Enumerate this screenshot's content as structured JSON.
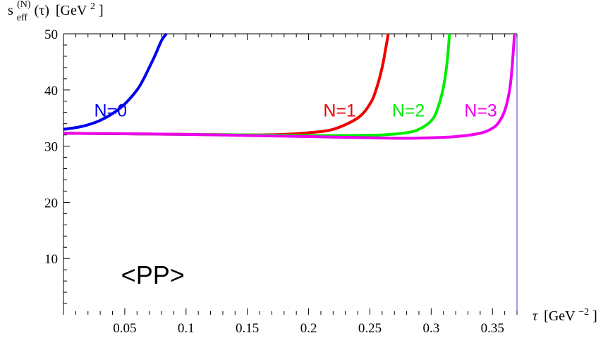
{
  "chart_data": {
    "type": "line",
    "title": "",
    "xlabel": {
      "symbol": "τ",
      "unit_prefix": "[GeV",
      "unit_exp": "−2",
      "unit_suffix": "]"
    },
    "ylabel": {
      "main": "s",
      "sub": "eff",
      "sup": "(N)",
      "arg": "(τ)",
      "unit_prefix": "[GeV",
      "unit_exp": "2",
      "unit_suffix": "]"
    },
    "xlim": [
      0.0,
      0.37
    ],
    "ylim": [
      0,
      50
    ],
    "xticks": [
      0.05,
      0.1,
      0.15,
      0.2,
      0.25,
      0.3,
      0.35
    ],
    "xtick_labels": [
      "0.05",
      "0.1",
      "0.15",
      "0.2",
      "0.25",
      "0.3",
      "0.35"
    ],
    "yticks": [
      10,
      20,
      30,
      40,
      50
    ],
    "ytick_labels": [
      "10",
      "20",
      "30",
      "40",
      "50"
    ],
    "grid": false,
    "annotation": "<PP>",
    "series": [
      {
        "name": "N=0",
        "color": "#0000ee",
        "x": [
          0.0,
          0.01,
          0.02,
          0.03,
          0.04,
          0.05,
          0.06,
          0.065,
          0.07,
          0.075,
          0.08,
          0.084
        ],
        "y": [
          33.0,
          33.3,
          33.8,
          34.6,
          35.8,
          37.5,
          40.0,
          41.8,
          44.0,
          46.3,
          48.8,
          50.0
        ]
      },
      {
        "name": "N=1",
        "color": "#ee0000",
        "x": [
          0.0,
          0.05,
          0.1,
          0.15,
          0.18,
          0.2,
          0.22,
          0.24,
          0.25,
          0.255,
          0.26,
          0.263,
          0.265
        ],
        "y": [
          32.3,
          32.2,
          32.1,
          32.0,
          32.1,
          32.4,
          33.0,
          35.0,
          37.5,
          40.0,
          44.0,
          47.5,
          50.0
        ]
      },
      {
        "name": "N=2",
        "color": "#00ee00",
        "x": [
          0.0,
          0.05,
          0.1,
          0.15,
          0.2,
          0.23,
          0.26,
          0.28,
          0.29,
          0.3,
          0.305,
          0.31,
          0.313,
          0.315
        ],
        "y": [
          32.3,
          32.2,
          32.1,
          32.0,
          31.9,
          31.9,
          32.0,
          32.4,
          33.0,
          34.5,
          36.5,
          40.5,
          45.0,
          50.0
        ]
      },
      {
        "name": "N=3",
        "color": "#ee00ee",
        "x": [
          0.0,
          0.05,
          0.1,
          0.15,
          0.2,
          0.25,
          0.28,
          0.3,
          0.32,
          0.34,
          0.35,
          0.355,
          0.36,
          0.364,
          0.366,
          0.368
        ],
        "y": [
          32.3,
          32.2,
          32.1,
          31.9,
          31.7,
          31.5,
          31.4,
          31.5,
          31.7,
          32.3,
          33.2,
          34.2,
          36.3,
          40.0,
          44.0,
          50.0
        ]
      }
    ],
    "label_positions_data": [
      {
        "series": "N=0",
        "x": 0.025,
        "y": 37.0
      },
      {
        "series": "N=1",
        "x": 0.212,
        "y": 37.0
      },
      {
        "series": "N=2",
        "x": 0.268,
        "y": 37.0
      },
      {
        "series": "N=3",
        "x": 0.327,
        "y": 37.0
      }
    ],
    "annotation_position_data": {
      "x": 0.047,
      "y": 7.0
    }
  }
}
